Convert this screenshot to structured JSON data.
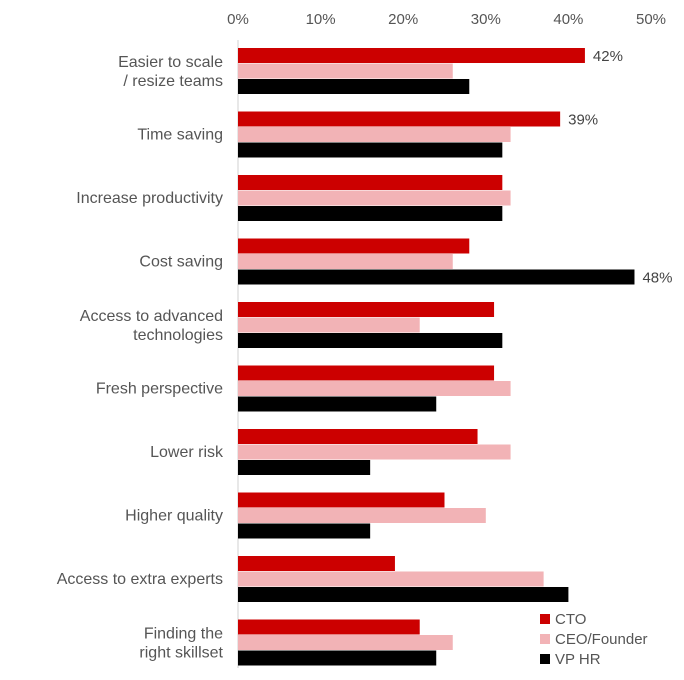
{
  "chart_data": {
    "type": "bar",
    "orientation": "horizontal",
    "title": "",
    "xlabel": "",
    "ylabel": "",
    "xlim": [
      0,
      50
    ],
    "x_ticks": [
      "0%",
      "10%",
      "20%",
      "30%",
      "40%",
      "50%"
    ],
    "x_tick_values": [
      0,
      10,
      20,
      30,
      40,
      50
    ],
    "axis_position": "top",
    "grid": false,
    "legend_position": "bottom-right",
    "categories": [
      "Easier to scale / resize teams",
      "Time saving",
      "Increase productivity",
      "Cost saving",
      "Access to advanced technologies",
      "Fresh perspective",
      "Lower risk",
      "Higher quality",
      "Access to extra experts",
      "Finding the right skillset"
    ],
    "series": [
      {
        "name": "CTO",
        "color": "#cc0000",
        "values": [
          42,
          39,
          32,
          28,
          31,
          31,
          29,
          25,
          19,
          22
        ]
      },
      {
        "name": "CEO/Founder",
        "color": "#f2b3b6",
        "values": [
          26,
          33,
          33,
          26,
          22,
          33,
          33,
          30,
          37,
          26
        ]
      },
      {
        "name": "VP HR",
        "color": "#000000",
        "values": [
          28,
          32,
          32,
          48,
          32,
          24,
          16,
          16,
          40,
          24
        ]
      }
    ],
    "data_labels": [
      {
        "category_index": 0,
        "series_index": 0,
        "text": "42%"
      },
      {
        "category_index": 1,
        "series_index": 0,
        "text": "39%"
      },
      {
        "category_index": 3,
        "series_index": 2,
        "text": "48%"
      }
    ]
  }
}
